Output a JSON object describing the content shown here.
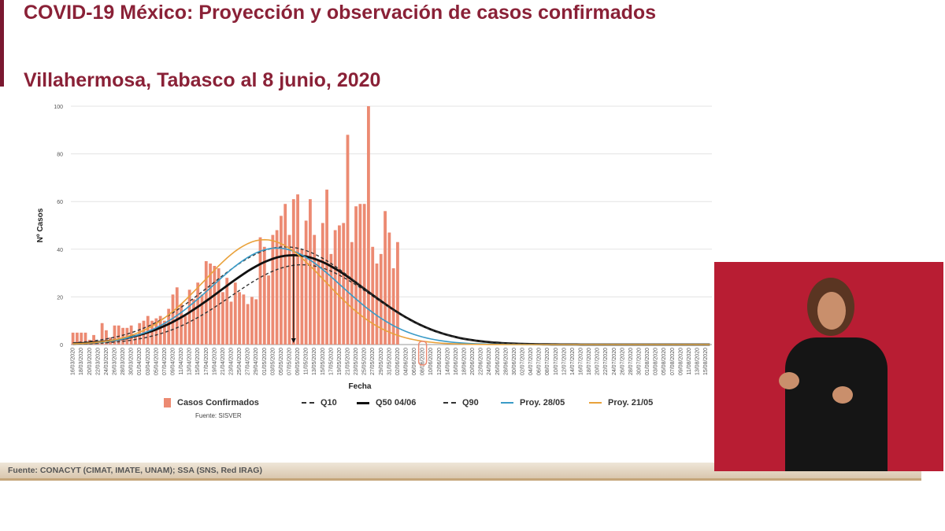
{
  "slide": {
    "title": "COVID-19 México: Proyección y observación de casos confirmados",
    "subtitle": "Villahermosa, Tabasco al 8 junio, 2020",
    "chart_source": "Fuente: SISVER",
    "footer_source": "Fuente: CONACYT (CIMAT, IMATE, UNAM);   SSA (SNS, Red IRAG)"
  },
  "colors": {
    "title": "#8a2137",
    "bars": "#ec8a72",
    "q50": "#111111",
    "q10_q90": "#333333",
    "proy_2805": "#3a9bc7",
    "proy_2105": "#e9a23b",
    "marker": "#ec8a72",
    "interpreter_bg": "#b81d33"
  },
  "chart_data": {
    "type": "bar",
    "xlabel": "Fecha",
    "ylabel": "Nº Casos",
    "ylim": [
      0,
      100
    ],
    "yticks": [
      0,
      20,
      40,
      60,
      80,
      100
    ],
    "grid": true,
    "date_start": "16/03/2020",
    "date_end": "16/08/2020",
    "values": [
      5,
      5,
      5,
      5,
      2,
      4,
      1,
      9,
      6,
      3,
      8,
      8,
      7,
      7,
      8,
      4,
      9,
      10,
      12,
      10,
      11,
      12,
      10,
      15,
      21,
      24,
      17,
      12,
      23,
      19,
      26,
      21,
      35,
      34,
      33,
      32,
      22,
      28,
      18,
      26,
      22,
      21,
      17,
      20,
      19,
      45,
      41,
      29,
      46,
      48,
      54,
      59,
      46,
      61,
      63,
      40,
      52,
      61,
      46,
      35,
      51,
      65,
      38,
      48,
      50,
      51,
      88,
      43,
      58,
      59,
      59,
      100,
      41,
      34,
      38,
      56,
      47,
      32,
      43
    ],
    "series": [
      {
        "name": "Casos Confirmados",
        "kind": "bar"
      },
      {
        "name": "Q10",
        "kind": "dash",
        "peak_date": "10/05/2020",
        "peak": 33.5,
        "width": 17
      },
      {
        "name": "Q50 04/06",
        "kind": "solid",
        "peak_date": "08/05/2020",
        "peak": 37.5,
        "width": 17.5
      },
      {
        "name": "Q90",
        "kind": "dash",
        "peak_date": "06/05/2020",
        "peak": 41,
        "width": 18
      },
      {
        "name": "Proy. 28/05",
        "kind": "line",
        "peak_date": "04/05/2020",
        "peak": 40.5,
        "width": 15.5
      },
      {
        "name": "Proy. 21/05",
        "kind": "line",
        "peak_date": "01/05/2020",
        "peak": 44,
        "width": 14.5
      }
    ],
    "annotation": {
      "peak_marker_date": "08/05/2020",
      "highlight_date": "08/06/2020"
    }
  }
}
